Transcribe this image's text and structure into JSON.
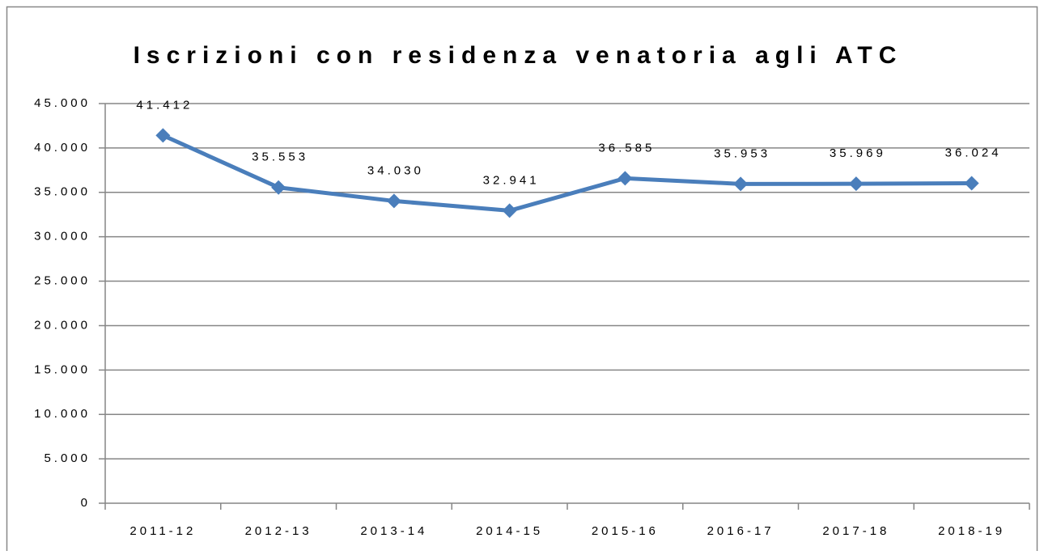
{
  "chart_data": {
    "type": "line",
    "title": "Iscrizioni con residenza venatoria agli ATC",
    "categories": [
      "2011-12",
      "2012-13",
      "2013-14",
      "2014-15",
      "2015-16",
      "2016-17",
      "2017-18",
      "2018-19"
    ],
    "series": [
      {
        "name": "Iscrizioni",
        "color": "#4a7ebb",
        "values": [
          41412,
          35553,
          34030,
          32941,
          36585,
          35953,
          35969,
          36024
        ],
        "value_labels": [
          "41.412",
          "35.553",
          "34.030",
          "32.941",
          "36.585",
          "35.953",
          "35.969",
          "36.024"
        ]
      }
    ],
    "ylim": [
      0,
      45000
    ],
    "yticks": [
      0,
      {
        "value": 5000,
        "label": "5.000"
      },
      {
        "value": 10000,
        "label": "10.000"
      },
      {
        "value": 15000,
        "label": "15.000"
      },
      {
        "value": 20000,
        "label": "20.000"
      },
      {
        "value": 25000,
        "label": "25.000"
      },
      {
        "value": 30000,
        "label": "30.000"
      },
      {
        "value": 35000,
        "label": "35.000"
      },
      {
        "value": 40000,
        "label": "40.000"
      },
      {
        "value": 45000,
        "label": "45.000"
      }
    ],
    "grid": true
  }
}
